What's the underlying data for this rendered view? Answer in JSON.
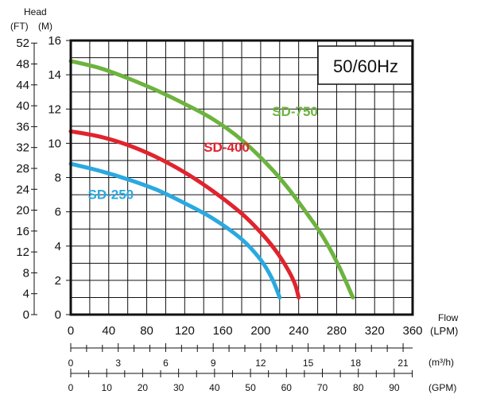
{
  "chart_data": {
    "type": "line",
    "head_label": "Head",
    "ft_unit": "(FT)",
    "m_unit": "(M)",
    "flow_label": "Flow",
    "lpm_unit": "(LPM)",
    "m3h_unit": "(m³/h)",
    "gpm_unit": "(GPM)",
    "frequency_label": "50/60Hz",
    "xlim_lpm": [
      0,
      360
    ],
    "ylim_m": [
      0,
      16
    ],
    "grid": true,
    "m_ticks": [
      0,
      2,
      4,
      6,
      8,
      10,
      12,
      14,
      16
    ],
    "ft_ticks": [
      0,
      4,
      8,
      12,
      16,
      20,
      24,
      28,
      32,
      36,
      40,
      44,
      48,
      52
    ],
    "lpm_ticks": [
      0,
      40,
      80,
      120,
      160,
      200,
      240,
      280,
      320,
      360
    ],
    "m3h_ticks": [
      "0",
      "3",
      "6",
      "9",
      "12",
      "15",
      "18",
      "21"
    ],
    "gpm_ticks": [
      "0",
      "10",
      "20",
      "30",
      "40",
      "50",
      "60",
      "70",
      "80",
      "90"
    ],
    "series": [
      {
        "name": "SD-750",
        "color": "#6db33f",
        "label_at": [
          212,
          11.6
        ],
        "x": [
          0,
          30,
          60,
          90,
          120,
          150,
          180,
          210,
          230,
          250,
          265,
          280,
          290,
          297
        ],
        "y": [
          14.8,
          14.4,
          13.8,
          13.1,
          12.3,
          11.4,
          10.2,
          8.6,
          7.3,
          5.8,
          4.6,
          3.1,
          1.9,
          1.0
        ]
      },
      {
        "name": "SD-400",
        "color": "#e0242e",
        "label_at": [
          140,
          9.5
        ],
        "x": [
          0,
          30,
          60,
          90,
          120,
          150,
          180,
          200,
          215,
          228,
          236,
          240
        ],
        "y": [
          10.7,
          10.4,
          9.9,
          9.2,
          8.3,
          7.2,
          5.9,
          4.8,
          3.8,
          2.7,
          1.8,
          1.0
        ]
      },
      {
        "name": "SD-250",
        "color": "#2aa9e0",
        "label_at": [
          18,
          6.75
        ],
        "x": [
          0,
          30,
          60,
          90,
          120,
          150,
          180,
          200,
          212,
          220
        ],
        "y": [
          8.8,
          8.4,
          7.9,
          7.3,
          6.5,
          5.6,
          4.4,
          3.2,
          2.1,
          1.0
        ]
      }
    ]
  }
}
